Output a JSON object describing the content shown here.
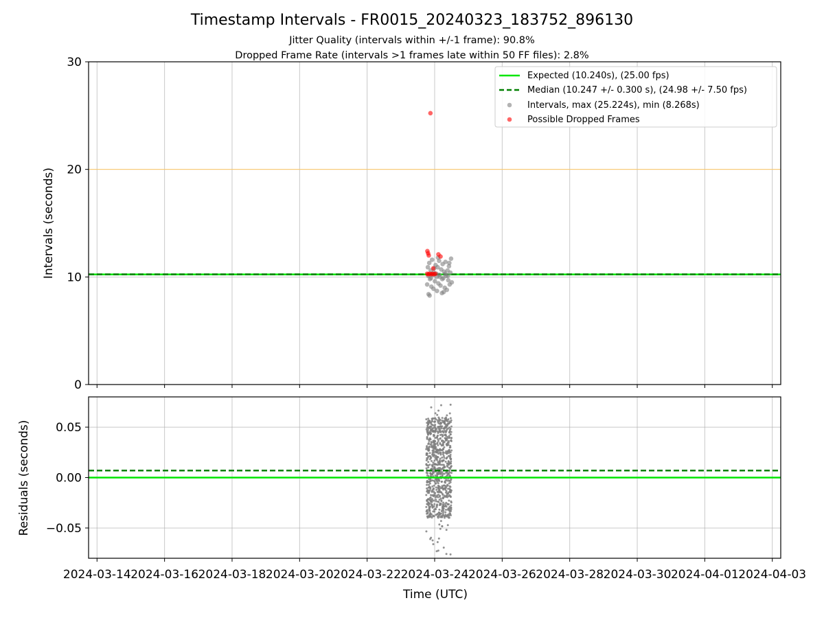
{
  "chart_data": [
    {
      "type": "scatter",
      "title": "Timestamp Intervals - FR0015_20240323_183752_896130",
      "subtitles": [
        "Jitter Quality (intervals within +/-1 frame): 90.8%",
        "Dropped Frame Rate (intervals >1 frames late within 50 FF files): 2.8%"
      ],
      "xlabel": "",
      "ylabel": "Intervals (seconds)",
      "x_type": "date",
      "xlim": [
        "2024-03-13T18:00",
        "2024-04-03T06:00"
      ],
      "ylim": [
        0,
        30
      ],
      "yticks": [
        0,
        10,
        20,
        30
      ],
      "xticks": [
        "2024-03-14",
        "2024-03-16",
        "2024-03-18",
        "2024-03-20",
        "2024-03-22",
        "2024-03-24",
        "2024-03-26",
        "2024-03-28",
        "2024-03-30",
        "2024-04-01",
        "2024-04-03"
      ],
      "grid": true,
      "legend_position": "top-right",
      "reference_lines": [
        {
          "name": "Expected (10.240s), (25.00 fps)",
          "y": 10.24,
          "color": "#00e600",
          "style": "solid"
        },
        {
          "name": "Median (10.247 +/- 0.300 s), (24.98 +/- 7.50 fps)",
          "y": 10.247,
          "color": "#007f00",
          "style": "dashed"
        },
        {
          "y": 20,
          "color": "#ffc966",
          "style": "solid"
        }
      ],
      "series": [
        {
          "name": "Intervals, max (25.224s), min (8.268s)",
          "color": "#808080",
          "points": [
            [
              "2024-03-23T18:40",
              9.3
            ],
            [
              "2024-03-23T19:10",
              10.9
            ],
            [
              "2024-03-23T19:40",
              8.4
            ],
            [
              "2024-03-23T20:10",
              11.3
            ],
            [
              "2024-03-23T20:40",
              9.8
            ],
            [
              "2024-03-23T21:10",
              10.6
            ],
            [
              "2024-03-23T21:40",
              9.1
            ],
            [
              "2024-03-23T22:10",
              11.6
            ],
            [
              "2024-03-23T22:40",
              10.2
            ],
            [
              "2024-03-23T23:10",
              8.9
            ],
            [
              "2024-03-23T23:40",
              10.8
            ],
            [
              "2024-03-24T00:10",
              9.6
            ],
            [
              "2024-03-24T00:40",
              11.1
            ],
            [
              "2024-03-24T01:10",
              10.3
            ],
            [
              "2024-03-24T01:40",
              8.7
            ],
            [
              "2024-03-24T02:10",
              10.9
            ],
            [
              "2024-03-24T02:40",
              9.4
            ],
            [
              "2024-03-24T03:10",
              11.5
            ],
            [
              "2024-03-24T03:40",
              10.0
            ],
            [
              "2024-03-24T04:10",
              9.2
            ],
            [
              "2024-03-24T04:40",
              10.7
            ],
            [
              "2024-03-24T05:10",
              8.5
            ],
            [
              "2024-03-24T05:40",
              11.2
            ],
            [
              "2024-03-24T06:10",
              9.9
            ],
            [
              "2024-03-24T06:40",
              10.5
            ],
            [
              "2024-03-24T07:10",
              9.0
            ],
            [
              "2024-03-24T07:40",
              11.4
            ],
            [
              "2024-03-24T08:10",
              10.1
            ],
            [
              "2024-03-24T08:40",
              8.8
            ],
            [
              "2024-03-24T09:10",
              10.6
            ],
            [
              "2024-03-24T09:40",
              9.7
            ],
            [
              "2024-03-24T10:10",
              11.0
            ],
            [
              "2024-03-24T10:40",
              9.3
            ],
            [
              "2024-03-24T11:10",
              10.4
            ],
            [
              "2024-03-24T11:40",
              11.7
            ],
            [
              "2024-03-24T12:10",
              9.5
            ],
            [
              "2024-03-23T19:25",
              10.1
            ],
            [
              "2024-03-23T21:25",
              9.9
            ],
            [
              "2024-03-23T23:25",
              10.4
            ],
            [
              "2024-03-24T01:25",
              10.0
            ],
            [
              "2024-03-24T03:25",
              10.2
            ],
            [
              "2024-03-24T05:25",
              9.8
            ],
            [
              "2024-03-24T07:25",
              10.3
            ],
            [
              "2024-03-24T09:25",
              10.1
            ],
            [
              "2024-03-23T20:25",
              8.27
            ],
            [
              "2024-03-24T02:25",
              11.8
            ],
            [
              "2024-03-24T06:25",
              8.6
            ],
            [
              "2024-03-24T10:25",
              11.3
            ]
          ]
        },
        {
          "name": "Possible Dropped Frames",
          "color": "#ff0000",
          "points": [
            [
              "2024-03-23T21:00",
              25.224
            ],
            [
              "2024-03-23T18:50",
              12.4
            ],
            [
              "2024-03-23T19:20",
              12.2
            ],
            [
              "2024-03-23T19:50",
              12.0
            ],
            [
              "2024-03-24T02:40",
              12.1
            ],
            [
              "2024-03-24T04:10",
              11.9
            ],
            [
              "2024-03-23T23:00",
              10.8
            ],
            [
              "2024-03-23T18:40",
              10.3
            ],
            [
              "2024-03-23T19:30",
              10.25
            ],
            [
              "2024-03-23T20:30",
              10.3
            ],
            [
              "2024-03-23T21:30",
              10.25
            ],
            [
              "2024-03-23T22:30",
              10.3
            ],
            [
              "2024-03-23T23:30",
              10.25
            ],
            [
              "2024-03-24T00:30",
              10.3
            ]
          ]
        }
      ]
    },
    {
      "type": "scatter",
      "title": "",
      "xlabel": "Time (UTC)",
      "ylabel": "Residuals (seconds)",
      "x_type": "date",
      "xlim": [
        "2024-03-13T18:00",
        "2024-04-03T06:00"
      ],
      "ylim": [
        -0.08,
        0.08
      ],
      "yticks": [
        -0.05,
        0.0,
        0.05
      ],
      "ytick_labels": [
        "−0.05",
        "0.00",
        "0.05"
      ],
      "xticks": [
        "2024-03-14",
        "2024-03-16",
        "2024-03-18",
        "2024-03-20",
        "2024-03-22",
        "2024-03-24",
        "2024-03-26",
        "2024-03-28",
        "2024-03-30",
        "2024-04-01",
        "2024-04-03"
      ],
      "grid": true,
      "reference_lines": [
        {
          "y": 0.0,
          "color": "#00e600",
          "style": "solid"
        },
        {
          "y": 0.007,
          "color": "#007f00",
          "style": "dashed"
        }
      ],
      "series": [
        {
          "color": "#808080",
          "x_range": [
            "2024-03-23T18:00",
            "2024-03-24T12:00"
          ],
          "y_range": [
            -0.078,
            0.078
          ],
          "summary": "dense band of several hundred residual points, mostly between -0.04 and 0.06"
        }
      ]
    }
  ]
}
